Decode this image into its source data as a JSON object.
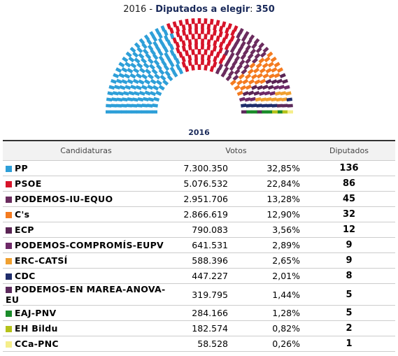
{
  "chart_data": {
    "type": "parliament",
    "title_parts": [
      "2016",
      " - ",
      "Diputados a elegir",
      ": ",
      "350"
    ],
    "series": [
      {
        "name": "PP",
        "color": "#2e9fd8",
        "value": 136
      },
      {
        "name": "PSOE",
        "color": "#d7142a",
        "value": 86
      },
      {
        "name": "PODEMOS-IU-EQUO",
        "color": "#6b2c5e",
        "value": 45
      },
      {
        "name": "C's",
        "color": "#f47b20",
        "value": 32
      },
      {
        "name": "ECP",
        "color": "#5a2454",
        "value": 12
      },
      {
        "name": "PODEMOS-COMPROMÍS-EUPV",
        "color": "#6e2a68",
        "value": 9
      },
      {
        "name": "ERC-CATSÍ",
        "color": "#f0a030",
        "value": 9
      },
      {
        "name": "CDC",
        "color": "#1f2d6b",
        "value": 8
      },
      {
        "name": "PODEMOS-EN MAREA-ANOVA-EU",
        "color": "#5c2a5c",
        "value": 5
      },
      {
        "name": "EAJ-PNV",
        "color": "#1a8c2a",
        "value": 5
      },
      {
        "name": "EH Bildu",
        "color": "#b5c21a",
        "value": 2
      },
      {
        "name": "CCa-PNC",
        "color": "#f5ee8a",
        "value": 1
      }
    ]
  },
  "table": {
    "caption": "2016",
    "headers": [
      "Candidaturas",
      "Votos",
      "Diputados"
    ],
    "rows": [
      {
        "votes": "7.300.350",
        "pct": "32,85%"
      },
      {
        "votes": "5.076.532",
        "pct": "22,84%"
      },
      {
        "votes": "2.951.706",
        "pct": "13,28%"
      },
      {
        "votes": "2.866.619",
        "pct": "12,90%"
      },
      {
        "votes": "790.083",
        "pct": "3,56%"
      },
      {
        "votes": "641.531",
        "pct": "2,89%"
      },
      {
        "votes": "588.396",
        "pct": "2,65%"
      },
      {
        "votes": "447.227",
        "pct": "2,01%"
      },
      {
        "votes": "319.795",
        "pct": "1,44%"
      },
      {
        "votes": "284.166",
        "pct": "1,28%"
      },
      {
        "votes": "182.574",
        "pct": "0,82%"
      },
      {
        "votes": "58.528",
        "pct": "0,26%"
      }
    ]
  }
}
